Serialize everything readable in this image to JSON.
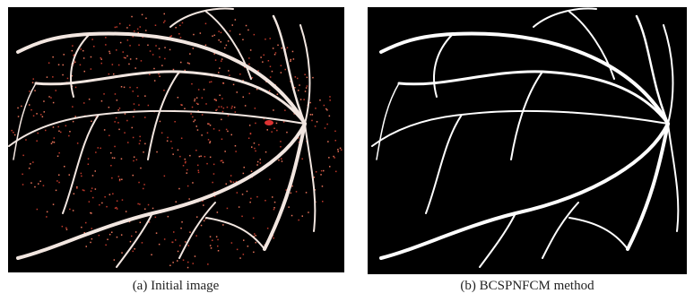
{
  "figure": {
    "panels": [
      {
        "caption": "(a) Initial image"
      },
      {
        "caption": "(b) BCSPNFCM method"
      }
    ]
  }
}
